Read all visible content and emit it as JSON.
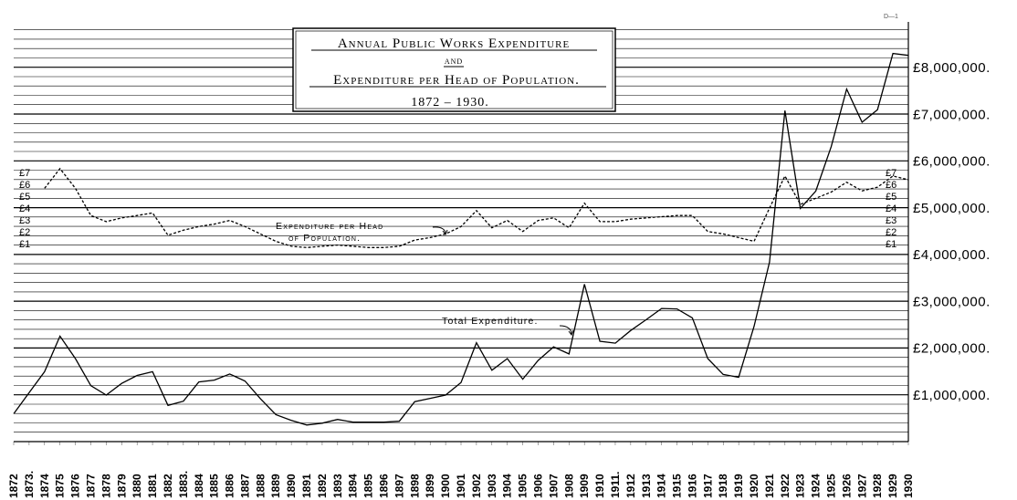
{
  "corner_note": "D—1",
  "chart_data": {
    "type": "line",
    "title_lines": [
      "Annual Public Works Expenditure",
      "and",
      "Expenditure per Head of Population.",
      "1872 – 1930."
    ],
    "x": [
      1872,
      1873,
      1874,
      1875,
      1876,
      1877,
      1878,
      1879,
      1880,
      1881,
      1882,
      1883,
      1884,
      1885,
      1886,
      1887,
      1888,
      1889,
      1890,
      1891,
      1892,
      1893,
      1894,
      1895,
      1896,
      1897,
      1898,
      1899,
      1900,
      1901,
      1902,
      1903,
      1904,
      1905,
      1906,
      1907,
      1908,
      1909,
      1910,
      1911,
      1912,
      1913,
      1914,
      1915,
      1916,
      1917,
      1918,
      1919,
      1920,
      1921,
      1922,
      1923,
      1924,
      1925,
      1926,
      1927,
      1928,
      1929,
      1930
    ],
    "x_tick_labels": [
      "1872",
      "1873.",
      "1874",
      "1875",
      "1876",
      "1877",
      "1878",
      "1879",
      "1880",
      "1881",
      "1882",
      "1883.",
      "1884",
      "1885",
      "1886",
      "1887",
      "1888",
      "1889",
      "1890",
      "1891",
      "1892",
      "1893",
      "1894",
      "1895",
      "1896",
      "1897",
      "1898",
      "1899",
      "1900",
      "1901",
      "1902",
      "1903",
      "1904",
      "1905",
      "1906",
      "1907",
      "1908",
      "1909",
      "1910",
      "1911.",
      "1912",
      "1913",
      "1914",
      "1915",
      "1916",
      "1917",
      "1918",
      "1919",
      "1920",
      "1921",
      "1922",
      "1923",
      "1924",
      "1925",
      "1926",
      "1927",
      "1928",
      "1929",
      "1930"
    ],
    "y_tick_labels_right": [
      "£1,000,000.",
      "£2,000,000.",
      "£3,000,000.",
      "£4,000,000.",
      "£5,000,000.",
      "£6,000,000.",
      "£7,000,000.",
      "£8,000,000."
    ],
    "y_tick_values_right": [
      1000000,
      2000000,
      3000000,
      4000000,
      5000000,
      6000000,
      7000000,
      8000000
    ],
    "y_per_head_tick_labels": [
      "£1",
      "£2",
      "£3",
      "£4",
      "£5",
      "£6",
      "£7"
    ],
    "y_per_head_tick_values": [
      1,
      2,
      3,
      4,
      5,
      6,
      7
    ],
    "ylim": [
      0,
      8600000
    ],
    "grid": true,
    "series": [
      {
        "name": "Total Expenditure.",
        "line_style": "solid",
        "values": [
          600000,
          1050000,
          1500000,
          2260000,
          1780000,
          1200000,
          1000000,
          1250000,
          1420000,
          1500000,
          780000,
          870000,
          1280000,
          1320000,
          1450000,
          1300000,
          920000,
          580000,
          460000,
          360000,
          400000,
          480000,
          420000,
          420000,
          420000,
          440000,
          860000,
          930000,
          1000000,
          1270000,
          2120000,
          1530000,
          1780000,
          1340000,
          1740000,
          2030000,
          1880000,
          3370000,
          2150000,
          2110000,
          2380000,
          2610000,
          2850000,
          2840000,
          2650000,
          1780000,
          1440000,
          1380000,
          2470000,
          3840000,
          7080000,
          4990000,
          5360000,
          6310000,
          7540000,
          6830000,
          7100000,
          8300000,
          8260000
        ]
      },
      {
        "name": "Expenditure per Head of Population.",
        "line_style": "dashed",
        "values": [
          5.3,
          6.9,
          5.3,
          3.1,
          2.6,
          2.9,
          3.1,
          1.3,
          1.7,
          2.1,
          2.4,
          1.7,
          0.9,
          0.4,
          0.3,
          0.5,
          0.3,
          0.2,
          0.3,
          0.9,
          1.1,
          1.4,
          1.5,
          1.9,
          3.2,
          1.9,
          2.4,
          1.5,
          2.1,
          2.2,
          1.5,
          3.5,
          2.2,
          2.2,
          2.4,
          2.6,
          2.8,
          2.8,
          2.6,
          2.3,
          1.7,
          1.6,
          1.5,
          1.3,
          1.1,
          5.4,
          5.1,
          4.2,
          5.1,
          4.4,
          4.8,
          5.1,
          4.8
        ],
        "x": [
          1874,
          1875,
          1876,
          1877,
          1878,
          1880,
          1881,
          1882,
          1883,
          1885,
          1886,
          1887,
          1889,
          1890,
          1891,
          1893,
          1895,
          1896,
          1897,
          1898,
          1899,
          1900,
          1901,
          1902,
          1903,
          1905,
          1906,
          1907,
          1908,
          1909,
          1910,
          1911,
          1912,
          1913,
          1914,
          1916,
          1917,
          1918,
          1919,
          1920,
          1922,
          1923,
          1924,
          1925,
          1926,
          1922,
          1923,
          1924,
          1925,
          1926,
          1927,
          1928,
          1929
        ],
        "ylim": [
          0,
          7.5
        ]
      }
    ],
    "annotations": [
      {
        "text": "Expenditure per Head",
        "series": "per-head"
      },
      {
        "text": "of Population.",
        "series": "per-head"
      },
      {
        "text": "Total Expenditure.",
        "series": "total"
      }
    ]
  }
}
